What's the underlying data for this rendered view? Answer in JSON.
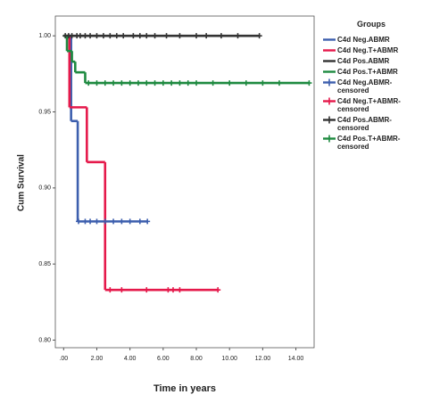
{
  "chart_data": {
    "type": "survival",
    "y_label": "Cum Survival",
    "x_label": "Time in years",
    "legend_title": "Groups",
    "xlim": [
      -0.5,
      15.1
    ],
    "ylim": [
      0.795,
      1.013
    ],
    "xticks": [
      {
        "value": 0,
        "label": ".00"
      },
      {
        "value": 2,
        "label": "2.00"
      },
      {
        "value": 4,
        "label": "4.00"
      },
      {
        "value": 6,
        "label": "6.00"
      },
      {
        "value": 8,
        "label": "8.00"
      },
      {
        "value": 10,
        "label": "10.00"
      },
      {
        "value": 12,
        "label": "12.00"
      },
      {
        "value": 14,
        "label": "14.00"
      }
    ],
    "yticks": [
      {
        "value": 0.8,
        "label": "0.80"
      },
      {
        "value": 0.85,
        "label": "0.85"
      },
      {
        "value": 0.9,
        "label": "0.90"
      },
      {
        "value": 0.95,
        "label": "0.95"
      },
      {
        "value": 1.0,
        "label": "1.00"
      }
    ],
    "series": [
      {
        "name": "C4d Neg.ABMR",
        "color": "#3d5fae",
        "marker": "line",
        "x": [
          0,
          0.45,
          0.85,
          5.05
        ],
        "values": [
          1.0,
          0.944,
          0.878,
          0.878
        ]
      },
      {
        "name": "C4d Neg.T+ABMR",
        "color": "#e5194b",
        "marker": "line",
        "x": [
          0,
          0.35,
          1.4,
          2.5,
          9.35
        ],
        "values": [
          1.0,
          0.953,
          0.917,
          0.833,
          0.833
        ]
      },
      {
        "name": "C4d Pos.ABMR",
        "color": "#333333",
        "marker": "line",
        "x": [
          0,
          11.8
        ],
        "values": [
          1.0,
          1.0
        ]
      },
      {
        "name": "C4d Pos.T+ABMR",
        "color": "#1e8a40",
        "marker": "line",
        "x": [
          0,
          0.2,
          0.5,
          0.7,
          1.3,
          14.8
        ],
        "values": [
          1.0,
          0.99,
          0.983,
          0.976,
          0.969,
          0.969
        ]
      },
      {
        "name": "C4d Neg.ABMR-censored",
        "color": "#3d5fae",
        "marker": "plus",
        "x": [
          0.9,
          1.3,
          1.6,
          2.0,
          2.5,
          3.0,
          3.5,
          4.0,
          4.6,
          5.05
        ],
        "values": [
          0.878,
          0.878,
          0.878,
          0.878,
          0.878,
          0.878,
          0.878,
          0.878,
          0.878,
          0.878
        ]
      },
      {
        "name": "C4d Neg.T+ABMR-censored",
        "color": "#e5194b",
        "marker": "plus",
        "x": [
          2.8,
          3.5,
          5.0,
          6.3,
          6.6,
          7.0,
          9.3
        ],
        "values": [
          0.833,
          0.833,
          0.833,
          0.833,
          0.833,
          0.833,
          0.833
        ]
      },
      {
        "name": "C4d Pos.ABMR-censored",
        "color": "#333333",
        "marker": "plus",
        "x": [
          0.1,
          0.3,
          0.5,
          0.8,
          1.0,
          1.3,
          1.6,
          2.0,
          2.4,
          2.8,
          3.2,
          3.6,
          4.2,
          4.6,
          5.0,
          5.5,
          6.2,
          7.0,
          8.0,
          8.6,
          9.5,
          10.5,
          11.8
        ],
        "values": [
          1.0,
          1.0,
          1.0,
          1.0,
          1.0,
          1.0,
          1.0,
          1.0,
          1.0,
          1.0,
          1.0,
          1.0,
          1.0,
          1.0,
          1.0,
          1.0,
          1.0,
          1.0,
          1.0,
          1.0,
          1.0,
          1.0,
          1.0
        ]
      },
      {
        "name": "C4d Pos.T+ABMR-censored",
        "color": "#1e8a40",
        "marker": "plus",
        "x": [
          1.5,
          2.0,
          2.5,
          3.0,
          3.5,
          4.0,
          4.5,
          5.0,
          5.5,
          6.0,
          6.5,
          7.0,
          7.5,
          8.0,
          9.0,
          10.0,
          11.0,
          12.0,
          13.0,
          14.8
        ],
        "values": [
          0.969,
          0.969,
          0.969,
          0.969,
          0.969,
          0.969,
          0.969,
          0.969,
          0.969,
          0.969,
          0.969,
          0.969,
          0.969,
          0.969,
          0.969,
          0.969,
          0.969,
          0.969,
          0.969,
          0.969
        ]
      }
    ]
  }
}
